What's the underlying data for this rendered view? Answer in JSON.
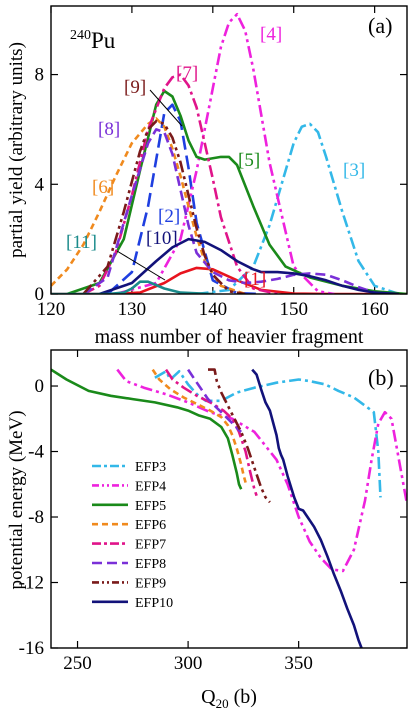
{
  "chart_data": [
    {
      "type": "line",
      "panel_label": "(a)",
      "nucleus_mass": "240",
      "nucleus_symbol": "Pu",
      "xlabel": "mass number of heavier fragment",
      "ylabel": "partial yield (arbitrary units)",
      "xlim": [
        120,
        164
      ],
      "ylim": [
        0,
        10.5
      ],
      "xticks": [
        120,
        130,
        140,
        150,
        160
      ],
      "yticks": [
        0,
        4,
        8
      ],
      "series": [
        {
          "name": "[1]",
          "color": "#e8141e",
          "dash": "solid",
          "x": [
            120,
            128,
            131,
            134,
            136,
            138,
            140,
            143,
            146,
            150,
            155,
            160,
            164
          ],
          "y": [
            0,
            0,
            0.05,
            0.4,
            0.75,
            0.95,
            0.9,
            0.5,
            0.15,
            0.02,
            0,
            0,
            0
          ]
        },
        {
          "name": "[2]",
          "color": "#1f3fe0",
          "dash": "long",
          "x": [
            127,
            130,
            132,
            134,
            135,
            136,
            137,
            138,
            140,
            143,
            146
          ],
          "y": [
            0,
            0.8,
            3.2,
            6.6,
            6.9,
            6.3,
            4.6,
            2.6,
            0.5,
            0.03,
            0
          ]
        },
        {
          "name": "[3]",
          "color": "#33b8e8",
          "dash": "dashdot",
          "x": [
            138,
            142,
            145,
            147,
            149,
            150,
            151,
            152,
            153,
            154,
            156,
            158,
            160,
            163
          ],
          "y": [
            0,
            0.15,
            1.0,
            2.5,
            4.5,
            5.5,
            6.1,
            6.2,
            5.9,
            5.0,
            3.0,
            1.2,
            0.3,
            0
          ]
        },
        {
          "name": "[4]",
          "color": "#ee22dd",
          "dash": "dashdotdot",
          "x": [
            128,
            133,
            136,
            138,
            140,
            141,
            142,
            143,
            144,
            145,
            147,
            150,
            153,
            155
          ],
          "y": [
            0,
            0.4,
            2.0,
            4.5,
            7.5,
            9.0,
            9.9,
            10.2,
            9.6,
            8.2,
            4.8,
            1.0,
            0.1,
            0
          ]
        },
        {
          "name": "[5]",
          "color": "#1a8a1a",
          "dash": "solid",
          "x": [
            122,
            126,
            129,
            131,
            133,
            134,
            135,
            136,
            137,
            138,
            139,
            141,
            142,
            143,
            145,
            147,
            149,
            152,
            156,
            160,
            164
          ],
          "y": [
            0,
            0.4,
            2.0,
            4.5,
            6.9,
            7.4,
            7.2,
            6.5,
            5.6,
            5.0,
            4.9,
            5.0,
            5.0,
            4.7,
            3.2,
            1.8,
            1.0,
            0.6,
            0.3,
            0.1,
            0
          ]
        },
        {
          "name": "[6]",
          "color": "#f08a1e",
          "dash": "shortdash",
          "x": [
            120,
            122,
            124,
            126,
            128,
            130,
            132,
            133,
            134,
            135,
            136,
            137,
            138,
            139,
            141,
            144
          ],
          "y": [
            0.3,
            0.9,
            1.8,
            3.0,
            4.3,
            5.5,
            6.2,
            6.4,
            6.1,
            5.3,
            4.3,
            3.2,
            2.1,
            1.2,
            0.3,
            0
          ]
        },
        {
          "name": "[7]",
          "color": "#e0148a",
          "dash": "dashdot",
          "x": [
            124,
            126,
            128,
            130,
            132,
            134,
            135,
            136,
            137,
            138,
            139,
            140,
            141,
            143,
            145,
            148
          ],
          "y": [
            0,
            0.3,
            1.5,
            3.6,
            6.0,
            7.5,
            7.9,
            8.0,
            7.6,
            6.8,
            5.5,
            4.2,
            2.8,
            1.0,
            0.2,
            0
          ]
        },
        {
          "name": "[8]",
          "color": "#7a30d8",
          "dash": "longdash",
          "x": [
            124,
            127,
            130,
            132,
            133,
            134,
            135,
            136,
            137,
            138,
            140,
            142,
            144,
            146,
            148,
            150,
            152,
            154,
            156,
            158,
            160
          ],
          "y": [
            0,
            0.6,
            3.6,
            5.5,
            6.0,
            5.9,
            5.1,
            3.8,
            2.5,
            1.5,
            0.8,
            0.5,
            0.4,
            0.45,
            0.55,
            0.7,
            0.75,
            0.7,
            0.5,
            0.25,
            0.05
          ]
        },
        {
          "name": "[9]",
          "color": "#7a1a1a",
          "dash": "dashdotdot",
          "x": [
            124,
            127,
            129,
            131,
            132,
            133,
            134,
            135,
            136,
            137,
            138,
            139,
            140,
            142,
            144
          ],
          "y": [
            0,
            1.0,
            3.0,
            5.2,
            6.0,
            6.3,
            6.2,
            5.7,
            4.8,
            3.6,
            2.4,
            1.4,
            0.7,
            0.1,
            0
          ]
        },
        {
          "name": "[10]",
          "color": "#12127a",
          "dash": "solid",
          "x": [
            126,
            130,
            133,
            135,
            137,
            139,
            141,
            143,
            145,
            146,
            148,
            150,
            152,
            154,
            156,
            158,
            160,
            163
          ],
          "y": [
            0,
            0.4,
            1.2,
            1.7,
            2.0,
            1.9,
            1.6,
            1.2,
            0.9,
            0.8,
            0.8,
            0.75,
            0.65,
            0.5,
            0.3,
            0.15,
            0.05,
            0
          ]
        },
        {
          "name": "[11]",
          "color": "#1a8a8a",
          "dash": "solid",
          "x": [
            120,
            127,
            129,
            130,
            131,
            132,
            134,
            136,
            140
          ],
          "y": [
            0,
            0,
            0.05,
            0.2,
            0.45,
            0.45,
            0.2,
            0.05,
            0
          ]
        }
      ]
    },
    {
      "type": "line",
      "panel_label": "(b)",
      "xlabel_main": "Q",
      "xlabel_sub": "20",
      "xlabel_unit": " (b)",
      "ylabel": "potential energy (MeV)",
      "xlim": [
        238,
        399
      ],
      "ylim": [
        -16,
        2.2
      ],
      "xticks": [
        250,
        300,
        350
      ],
      "yticks": [
        0,
        -4,
        -8,
        -12,
        -16
      ],
      "series": [
        {
          "name": "EFP3",
          "color": "#33b8e8",
          "dash": "dashdot",
          "x": [
            285,
            290,
            292,
            296,
            300,
            304,
            308,
            315,
            322,
            330,
            340,
            350,
            355,
            362,
            368,
            375,
            380,
            384,
            386,
            387
          ],
          "y": [
            0.5,
            0.9,
            0.4,
            0.9,
            0.1,
            -0.5,
            -0.9,
            -0.9,
            -0.4,
            -0.1,
            0.2,
            0.4,
            0.3,
            0.1,
            -0.3,
            -0.7,
            -1.2,
            -1.6,
            -4.0,
            -6.8
          ]
        },
        {
          "name": "EFP4",
          "color": "#ee22dd",
          "dash": "dashdotdot",
          "x": [
            268,
            272,
            280,
            290,
            300,
            310,
            320,
            330,
            340,
            345,
            350,
            355,
            360,
            365,
            370,
            375,
            380,
            383,
            386,
            389,
            392,
            396,
            399
          ],
          "y": [
            1.0,
            0.3,
            -0.1,
            -0.5,
            -1.0,
            -1.6,
            -2.0,
            -2.8,
            -4.5,
            -6.0,
            -8.0,
            -9.5,
            -10.5,
            -11.2,
            -11.3,
            -10.0,
            -7.0,
            -4.5,
            -2.3,
            -1.6,
            -2.0,
            -5.0,
            -7.2
          ]
        },
        {
          "name": "EFP5",
          "color": "#1a8a1a",
          "dash": "solid",
          "x": [
            238,
            245,
            255,
            265,
            275,
            285,
            295,
            300,
            305,
            310,
            315,
            318,
            320,
            322,
            323,
            324
          ],
          "y": [
            1.0,
            0.4,
            -0.3,
            -0.6,
            -0.8,
            -1.0,
            -1.3,
            -1.5,
            -1.8,
            -2.0,
            -2.5,
            -3.2,
            -4.2,
            -5.3,
            -6.0,
            -6.3
          ]
        },
        {
          "name": "EFP6",
          "color": "#f08a1e",
          "dash": "shortdash",
          "x": [
            284,
            287,
            292,
            298,
            304,
            310,
            315,
            318,
            320,
            322,
            324,
            325,
            326
          ],
          "y": [
            1.0,
            0.4,
            -0.2,
            -0.7,
            -1.1,
            -1.5,
            -1.9,
            -2.4,
            -3.0,
            -3.8,
            -4.8,
            -5.4,
            -5.9
          ]
        },
        {
          "name": "EFP7",
          "color": "#e0148a",
          "dash": "dashdot",
          "x": [
            290,
            293,
            298,
            304,
            310,
            316,
            320,
            323,
            326,
            328,
            330,
            331
          ],
          "y": [
            1.0,
            0.4,
            -0.1,
            -0.6,
            -1.0,
            -1.5,
            -2.0,
            -2.8,
            -4.0,
            -5.2,
            -6.3,
            -6.7
          ]
        },
        {
          "name": "EFP8",
          "color": "#7a30d8",
          "dash": "longdash",
          "x": [
            300,
            303,
            306,
            309,
            312,
            315,
            318,
            321,
            323,
            324
          ],
          "y": [
            1.0,
            0.4,
            -0.2,
            -0.8,
            -1.2,
            -1.6,
            -2.0,
            -2.4,
            -2.7,
            -2.8
          ]
        },
        {
          "name": "EFP9",
          "color": "#7a1a1a",
          "dash": "dashdotdot",
          "x": [
            309,
            312,
            313,
            315,
            318,
            321,
            324,
            327,
            330,
            333,
            335,
            337
          ],
          "y": [
            1.0,
            1.0,
            0.3,
            -0.4,
            -1.2,
            -2.0,
            -2.8,
            -3.8,
            -5.0,
            -6.2,
            -6.8,
            -7.1
          ]
        },
        {
          "name": "EFP10",
          "color": "#12127a",
          "dash": "solid",
          "x": [
            329,
            331,
            333,
            335,
            337,
            339,
            340,
            341,
            342,
            343,
            345,
            348,
            350,
            352,
            354,
            357,
            360,
            363,
            366,
            369,
            372,
            375,
            377,
            379
          ],
          "y": [
            1.0,
            0.7,
            -0.2,
            -1.0,
            -1.5,
            -2.5,
            -3.0,
            -3.8,
            -4.2,
            -4.5,
            -5.5,
            -6.8,
            -7.5,
            -7.6,
            -8.0,
            -8.6,
            -9.4,
            -10.4,
            -11.5,
            -12.5,
            -13.6,
            -14.6,
            -15.5,
            -16.2
          ]
        }
      ]
    }
  ]
}
